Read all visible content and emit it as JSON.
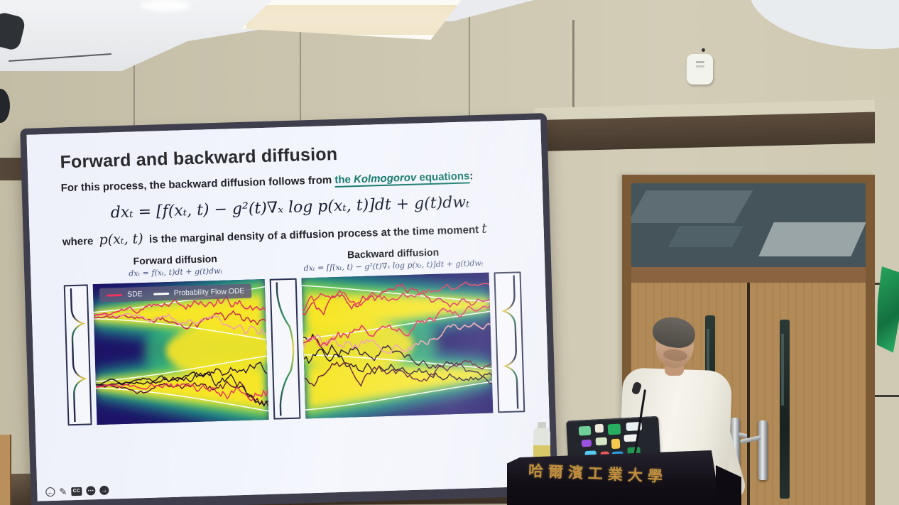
{
  "slide": {
    "title": "Forward and backward diffusion",
    "lead": {
      "prefix": "For this process, the backward diffusion follows from ",
      "link_pre": "the ",
      "link_italic": "Kolmogorov",
      "link_post": " equations",
      "suffix": ":"
    },
    "main_equation": "dxₜ = [f(xₜ, t) − g²(t)∇ₓ log p(xₜ, t)]dt + g(t)dwₜ",
    "where_line": {
      "prefix": "where",
      "math": "p(xₜ, t)",
      "text": "is the marginal density of a diffusion process at the time moment",
      "tail_math": "t"
    },
    "panels": [
      {
        "heading": "Forward diffusion",
        "equation": "dxₜ = f(xₜ, t)dt + g(t)dwₜ"
      },
      {
        "heading": "Backward diffusion",
        "equation": "dxₜ = [f(xₜ, t) − g²(t)∇ₓ log p(xₜ, t)]dt + g(t)dwₜ"
      }
    ],
    "legend": {
      "items": [
        {
          "label": "SDE",
          "color": "#e8365d"
        },
        {
          "label": "Probability Flow ODE",
          "color": "#ffffff"
        }
      ]
    },
    "controls": {
      "icons": [
        "back-arrow",
        "pen",
        "closed-captions",
        "more-dots",
        "next-arrow"
      ],
      "cc_label": "CC"
    }
  },
  "room": {
    "podium_text": "哈爾濱工業大學"
  },
  "colors": {
    "link_teal": "#177a6d",
    "slide_background": "#f2f4fc",
    "screen_bezel": "#3e3e4c",
    "wall_beige": "#ccc6b0",
    "trim_brown": "#4e4134",
    "door_wood": "#b28a58",
    "podium_dark": "#131018",
    "heatmap_navy": "#1d1468",
    "heatmap_yellow": "#fde725",
    "sde_red": "#e8365d",
    "ode_white": "#ffffff"
  }
}
